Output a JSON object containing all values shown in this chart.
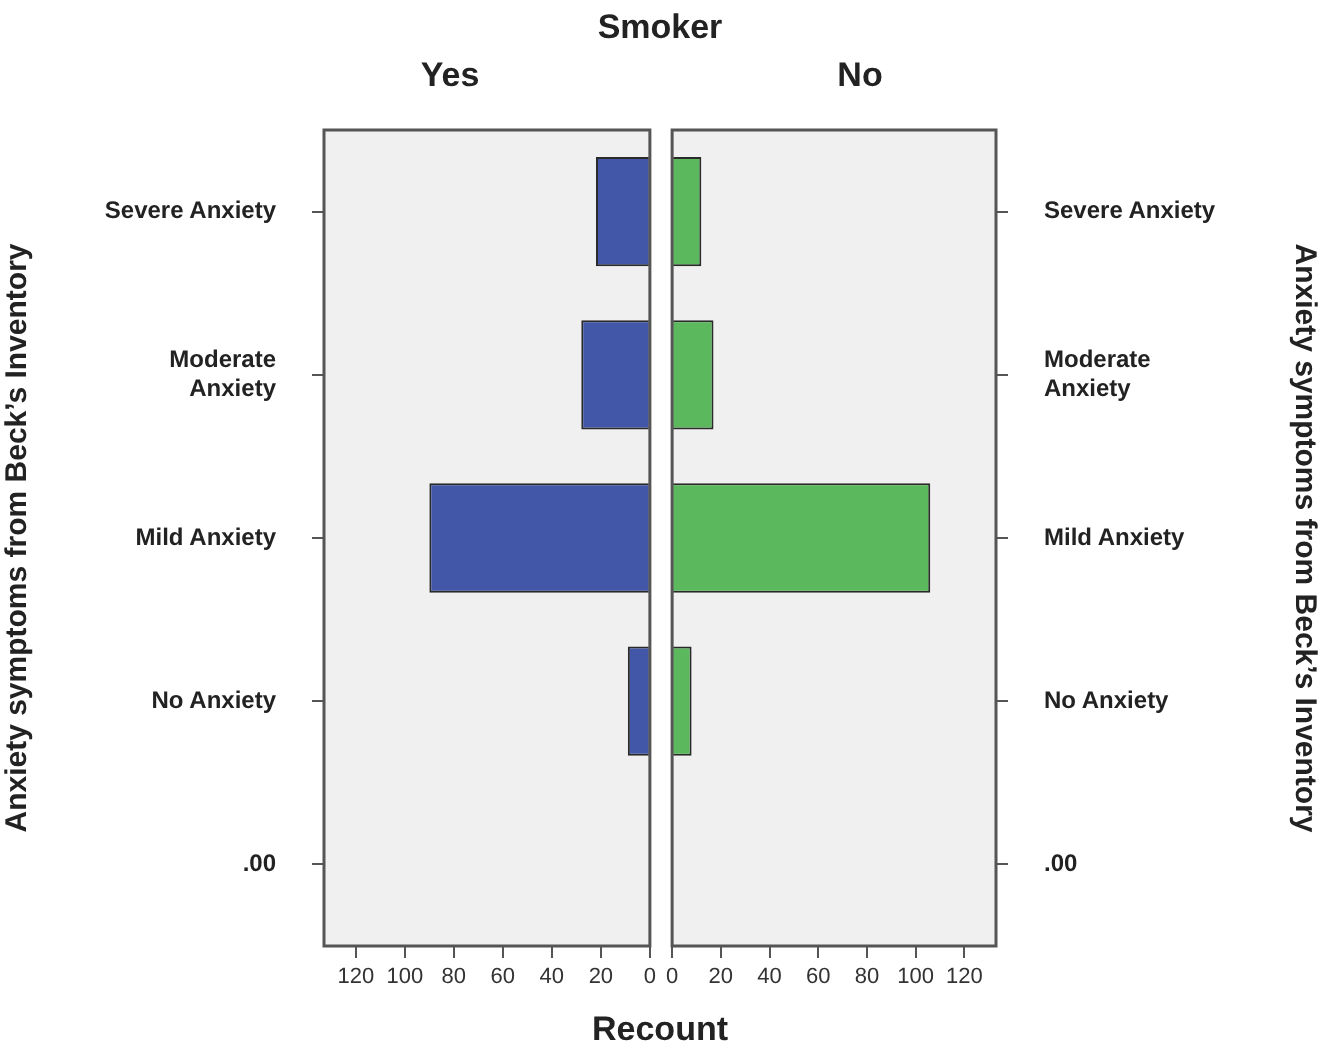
{
  "chart_data": [
    {
      "type": "bar",
      "orientation": "horizontal",
      "title": "Yes",
      "ylabel": "Anxiety symptoms from Beck’s Inventory",
      "categories": [
        "Severe Anxiety",
        "Moderate Anxiety",
        "Mild Anxiety",
        "No Anxiety",
        ".00"
      ],
      "series": [
        {
          "color": "#4257a7",
          "values": [
            22,
            28,
            90,
            9,
            null
          ]
        }
      ],
      "xlim": [
        133,
        0
      ],
      "xticks": [
        120,
        100,
        80,
        60,
        40,
        20,
        0
      ],
      "grid": false,
      "legend": false,
      "annotations": [
        "Smoker",
        "Recount"
      ]
    },
    {
      "type": "bar",
      "orientation": "horizontal",
      "title": "No",
      "ylabel": "Anxiety symptoms from Beck’s Inventory",
      "categories": [
        "Severe Anxiety",
        "Moderate Anxiety",
        "Mild Anxiety",
        "No Anxiety",
        ".00"
      ],
      "series": [
        {
          "color": "#5cb85c",
          "values": [
            12,
            17,
            106,
            8,
            null
          ]
        }
      ],
      "xlim": [
        0,
        133
      ],
      "xticks": [
        0,
        20,
        40,
        60,
        80,
        100,
        120
      ],
      "grid": false,
      "legend": false
    }
  ]
}
